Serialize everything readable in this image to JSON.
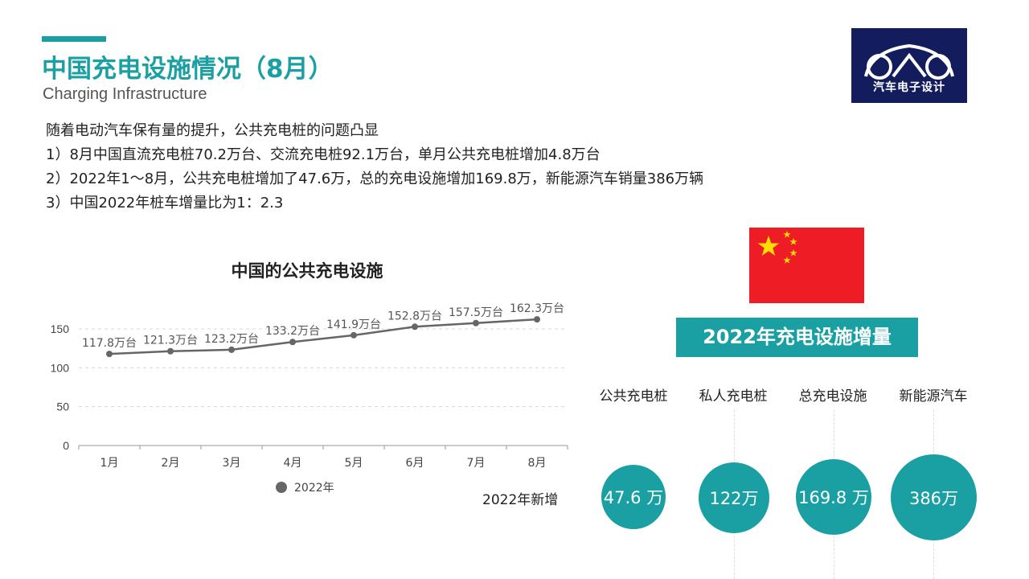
{
  "header": {
    "title": "中国充电设施情况（8月）",
    "subtitle": "Charging Infrastructure",
    "accent_color": "#1aa0a3"
  },
  "logo": {
    "text": "汽车电子设计",
    "icon": "car-outline-icon",
    "bg_color": "#131d5e"
  },
  "bullets": [
    "随着电动汽车保有量的提升，公共充电桩的问题凸显",
    "1）8月中国直流充电桩70.2万台、交流充电桩92.1万台，单月公共充电桩增加4.8万台",
    "2）2022年1～8月，公共充电桩增加了47.6万，总的充电设施增加169.8万，新能源汽车销量386万辆",
    "3）中国2022年桩车增量比为1：2.3"
  ],
  "chart_data": {
    "type": "line",
    "title": "中国的公共充电设施",
    "categories": [
      "1月",
      "2月",
      "3月",
      "4月",
      "5月",
      "6月",
      "7月",
      "8月"
    ],
    "series": [
      {
        "name": "2022年",
        "values": [
          117.8,
          121.3,
          123.2,
          133.2,
          141.9,
          152.8,
          157.5,
          162.3
        ],
        "color": "#666666"
      }
    ],
    "data_labels": [
      "117.8万台",
      "121.3万台",
      "123.2万台",
      "133.2万台",
      "141.9万台",
      "152.8万台",
      "157.5万台",
      "162.3万台"
    ],
    "yticks": [
      0,
      50,
      100,
      150
    ],
    "ylim": [
      0,
      150
    ],
    "grid": true,
    "legend_position": "bottom"
  },
  "flag": {
    "icon": "china-flag-icon",
    "color": "#ee1c25",
    "star_color": "#ffde00"
  },
  "increment": {
    "title": "2022年充电设施增量",
    "row_label": "2022年新增",
    "columns": [
      {
        "label": "公共充电桩",
        "value": "47.6 万"
      },
      {
        "label": "私人充电桩",
        "value": "122万"
      },
      {
        "label": "总充电设施",
        "value": "169.8 万"
      },
      {
        "label": "新能源汽车",
        "value": "386万"
      }
    ]
  }
}
